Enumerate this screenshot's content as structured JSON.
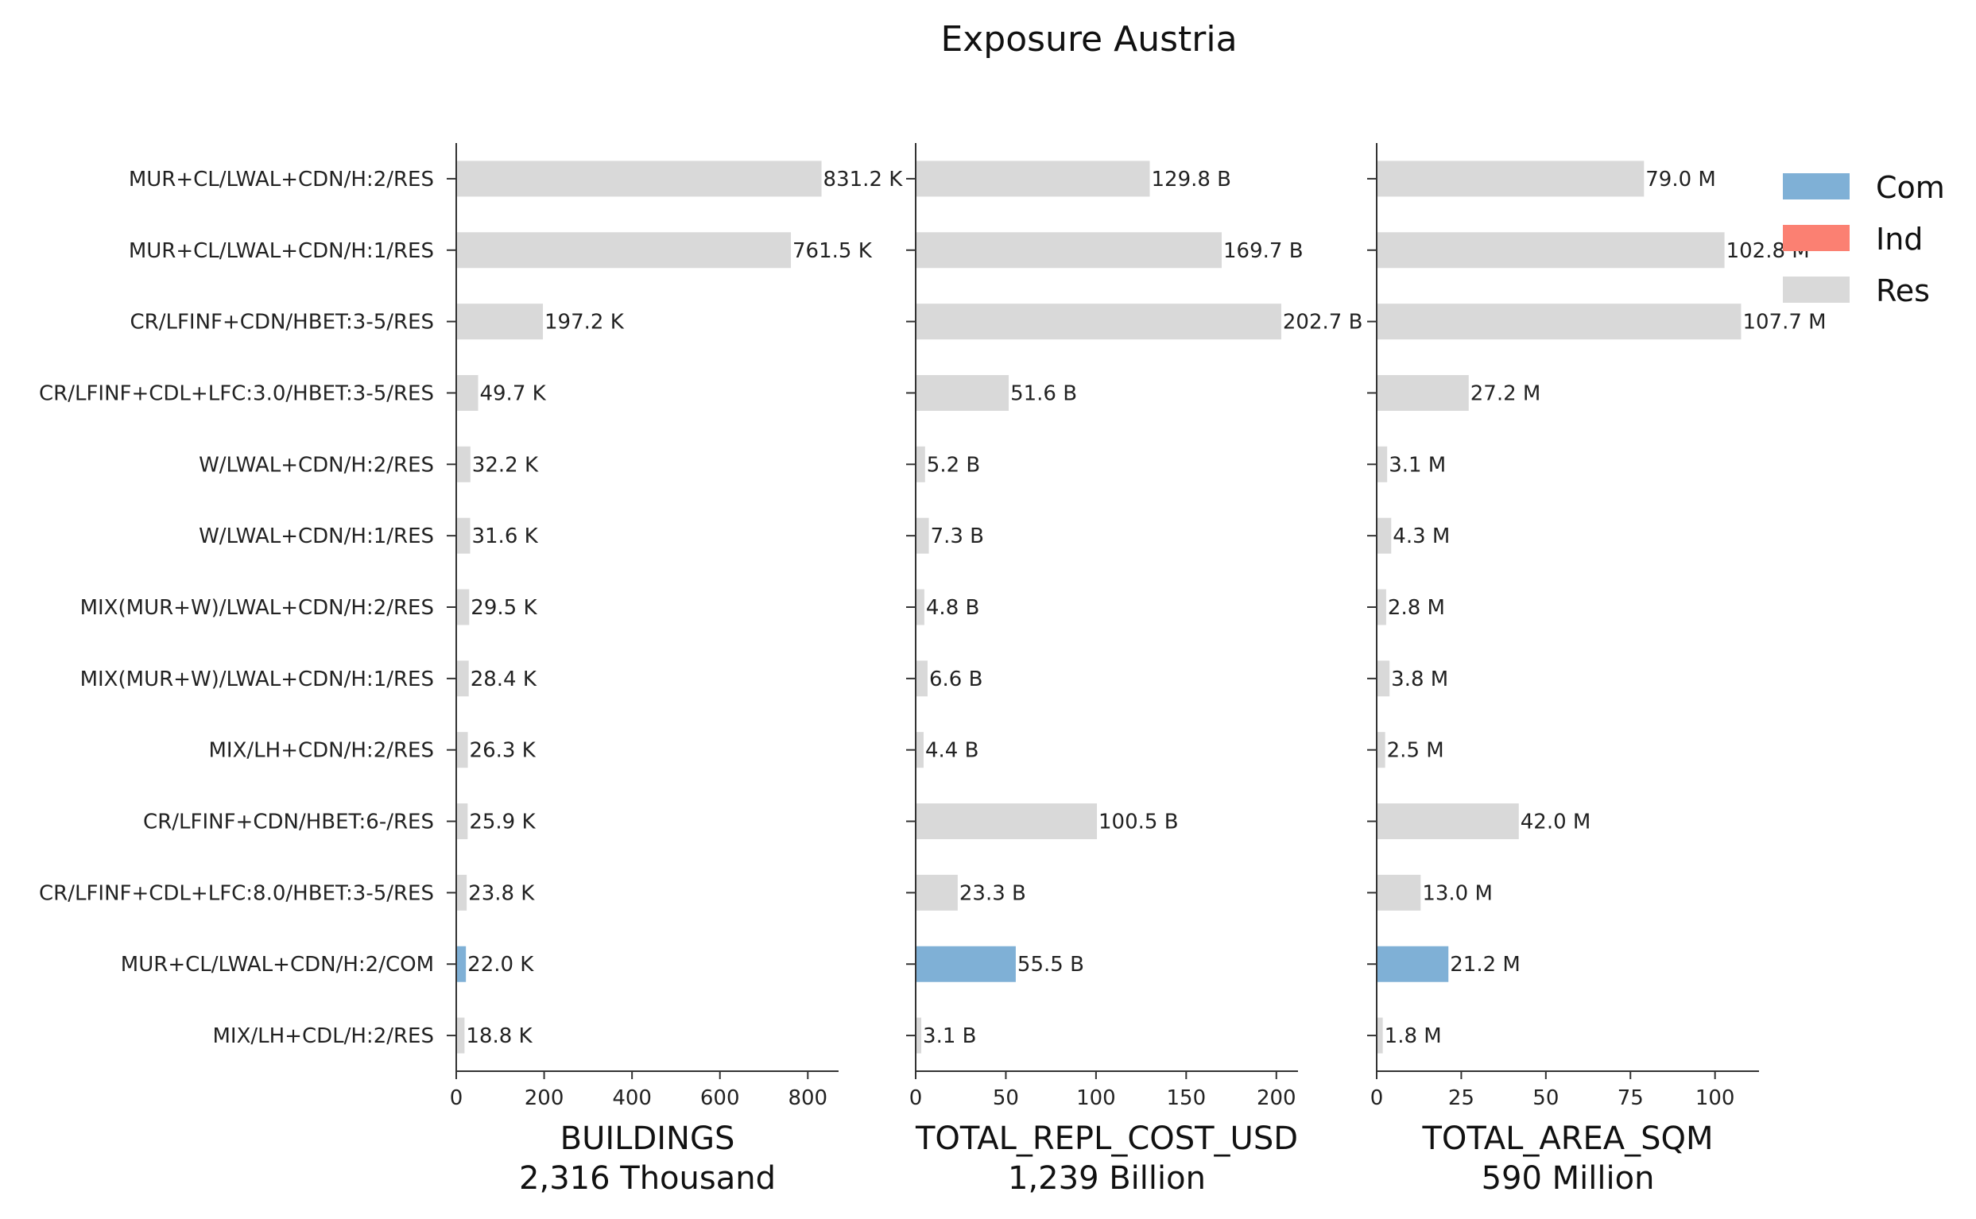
{
  "title": "Exposure Austria",
  "categories": [
    "MUR+CL/LWAL+CDN/H:2/RES",
    "MUR+CL/LWAL+CDN/H:1/RES",
    "CR/LFINF+CDN/HBET:3-5/RES",
    "CR/LFINF+CDL+LFC:3.0/HBET:3-5/RES",
    "W/LWAL+CDN/H:2/RES",
    "W/LWAL+CDN/H:1/RES",
    "MIX(MUR+W)/LWAL+CDN/H:2/RES",
    "MIX(MUR+W)/LWAL+CDN/H:1/RES",
    "MIX/LH+CDN/H:2/RES",
    "CR/LFINF+CDN/HBET:6-/RES",
    "CR/LFINF+CDL+LFC:8.0/HBET:3-5/RES",
    "MUR+CL/LWAL+CDN/H:2/COM",
    "MIX/LH+CDL/H:2/RES"
  ],
  "occupancy": [
    "Res",
    "Res",
    "Res",
    "Res",
    "Res",
    "Res",
    "Res",
    "Res",
    "Res",
    "Res",
    "Res",
    "Com",
    "Res"
  ],
  "legend": [
    {
      "label": "Com",
      "color": "#7fb0d6"
    },
    {
      "label": "Ind",
      "color": "#fb8072"
    },
    {
      "label": "Res",
      "color": "#d9d9d9"
    }
  ],
  "chart_data": [
    {
      "type": "bar",
      "orientation": "horizontal",
      "xlabel": "BUILDINGS",
      "subtitle": "2,316 Thousand",
      "xlim": [
        0,
        870
      ],
      "xticks": [
        0,
        200,
        400,
        600,
        800
      ],
      "values": [
        831.2,
        761.5,
        197.2,
        49.7,
        32.2,
        31.6,
        29.5,
        28.4,
        26.3,
        25.9,
        23.8,
        22.0,
        18.8
      ],
      "labels": [
        "831.2 K",
        "761.5 K",
        "197.2 K",
        "49.7 K",
        "32.2 K",
        "31.6 K",
        "29.5 K",
        "28.4 K",
        "26.3 K",
        "25.9 K",
        "23.8 K",
        "22.0 K",
        "18.8 K"
      ]
    },
    {
      "type": "bar",
      "orientation": "horizontal",
      "xlabel": "TOTAL_REPL_COST_USD",
      "subtitle": "1,239 Billion",
      "xlim": [
        0,
        212
      ],
      "xticks": [
        0,
        50,
        100,
        150,
        200
      ],
      "values": [
        129.8,
        169.7,
        202.7,
        51.6,
        5.2,
        7.3,
        4.8,
        6.6,
        4.4,
        100.5,
        23.3,
        55.5,
        3.1
      ],
      "labels": [
        "129.8 B",
        "169.7 B",
        "202.7 B",
        "51.6 B",
        "5.2 B",
        "7.3 B",
        "4.8 B",
        "6.6 B",
        "4.4 B",
        "100.5 B",
        "23.3 B",
        "55.5 B",
        "3.1 B"
      ]
    },
    {
      "type": "bar",
      "orientation": "horizontal",
      "xlabel": "TOTAL_AREA_SQM",
      "subtitle": "590 Million",
      "xlim": [
        0,
        113
      ],
      "xticks": [
        0,
        25,
        50,
        75,
        100
      ],
      "values": [
        79.0,
        102.8,
        107.7,
        27.2,
        3.1,
        4.3,
        2.8,
        3.8,
        2.5,
        42.0,
        13.0,
        21.2,
        1.8
      ],
      "labels": [
        "79.0 M",
        "102.8 M",
        "107.7 M",
        "27.2 M",
        "3.1 M",
        "4.3 M",
        "2.8 M",
        "3.8 M",
        "2.5 M",
        "42.0 M",
        "13.0 M",
        "21.2 M",
        "1.8 M"
      ]
    }
  ]
}
